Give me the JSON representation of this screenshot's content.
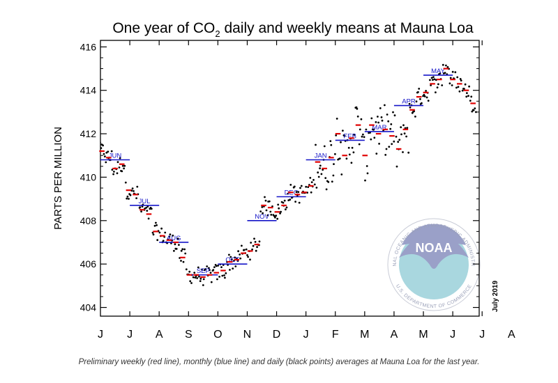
{
  "chart_data": {
    "type": "scatter",
    "title": {
      "main": "One year of CO",
      "sub": "2",
      "rest": " daily and weekly means at Mauna Loa"
    },
    "ylabel": "PARTS PER MILLION",
    "ylim": [
      403.6,
      416.3
    ],
    "yticks": [
      404,
      406,
      408,
      410,
      412,
      414,
      416
    ],
    "xlim": [
      0,
      12.9
    ],
    "xticks": [
      "J",
      "J",
      "A",
      "S",
      "O",
      "N",
      "D",
      "J",
      "F",
      "M",
      "A",
      "M",
      "J",
      "J",
      "A"
    ],
    "date_stamp": "July 2019",
    "colors": {
      "daily": "#000000",
      "weekly": "#e00000",
      "monthly": "#1414c8",
      "month_label": "#1414c8",
      "noaa": "#5b5fa8"
    },
    "monthly": [
      {
        "label": "JUN",
        "x": 0.5,
        "y": 410.8
      },
      {
        "label": "JUL",
        "x": 1.5,
        "y": 408.7
      },
      {
        "label": "AUG",
        "x": 2.5,
        "y": 407.0
      },
      {
        "label": "SEP",
        "x": 3.5,
        "y": 405.5
      },
      {
        "label": "OCT",
        "x": 4.5,
        "y": 406.0
      },
      {
        "label": "NOV",
        "x": 5.5,
        "y": 408.0
      },
      {
        "label": "DEC",
        "x": 6.5,
        "y": 409.1
      },
      {
        "label": "JAN",
        "x": 7.5,
        "y": 410.8
      },
      {
        "label": "FEB",
        "x": 8.5,
        "y": 411.7
      },
      {
        "label": "MAR",
        "x": 9.5,
        "y": 412.1
      },
      {
        "label": "APR",
        "x": 10.5,
        "y": 413.3
      },
      {
        "label": "MAY",
        "x": 11.5,
        "y": 414.7
      }
    ],
    "weekly": [
      [
        0.05,
        411.2
      ],
      [
        0.28,
        410.9
      ],
      [
        0.5,
        410.4
      ],
      [
        0.73,
        410.6
      ],
      [
        0.96,
        409.4
      ],
      [
        1.19,
        409.2
      ],
      [
        1.42,
        408.5
      ],
      [
        1.65,
        408.3
      ],
      [
        1.88,
        407.5
      ],
      [
        2.11,
        407.3
      ],
      [
        2.34,
        407.1
      ],
      [
        2.57,
        407.0
      ],
      [
        2.8,
        406.3
      ],
      [
        3.03,
        405.5
      ],
      [
        3.26,
        405.5
      ],
      [
        3.49,
        405.4
      ],
      [
        3.72,
        405.5
      ],
      [
        3.95,
        405.6
      ],
      [
        4.18,
        405.7
      ],
      [
        4.41,
        406.1
      ],
      [
        4.64,
        406.2
      ],
      [
        4.87,
        406.5
      ],
      [
        5.1,
        406.6
      ],
      [
        5.33,
        406.9
      ],
      [
        5.56,
        408.7
      ],
      [
        5.79,
        408.6
      ],
      [
        6.02,
        408.4
      ],
      [
        6.25,
        408.7
      ],
      [
        6.48,
        409.3
      ],
      [
        6.71,
        409.2
      ],
      [
        6.94,
        409.3
      ],
      [
        7.17,
        409.6
      ],
      [
        7.4,
        410.7
      ],
      [
        7.63,
        410.4
      ],
      [
        7.86,
        410.9
      ],
      [
        8.09,
        412.0
      ],
      [
        8.32,
        411.0
      ],
      [
        8.55,
        411.8
      ],
      [
        8.78,
        412.4
      ],
      [
        9.01,
        411.0
      ],
      [
        9.24,
        412.4
      ],
      [
        9.47,
        412.0
      ],
      [
        9.7,
        412.2
      ],
      [
        9.93,
        411.9
      ],
      [
        10.16,
        411.3
      ],
      [
        10.39,
        412.2
      ],
      [
        10.62,
        413.1
      ],
      [
        10.85,
        413.7
      ],
      [
        11.08,
        413.9
      ],
      [
        11.31,
        414.3
      ],
      [
        11.54,
        414.5
      ],
      [
        11.77,
        415.0
      ],
      [
        12.0,
        414.5
      ],
      [
        12.23,
        414.3
      ],
      [
        12.46,
        414.0
      ],
      [
        12.69,
        413.4
      ]
    ]
  },
  "watermark": {
    "center": "NOAA",
    "top_arc": "NATIONAL OCEANIC AND ATMOSPHERIC ADMINISTRATION",
    "bottom_arc": "U.S. DEPARTMENT OF COMMERCE"
  },
  "caption": "Preliminary weekly (red line), monthly (blue line) and daily (black points) averages at Mauna Loa for the last year."
}
